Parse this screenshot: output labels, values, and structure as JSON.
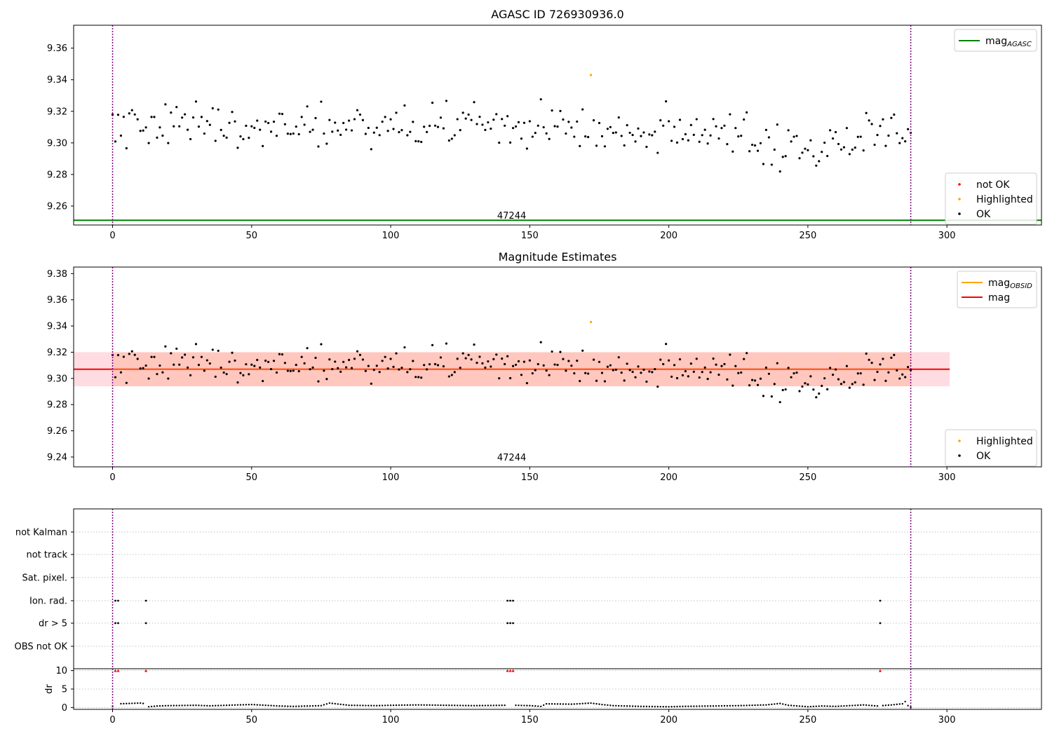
{
  "colors": {
    "ok": "#000000",
    "not_ok": "#ff0000",
    "highlighted": "#ffa500",
    "mag_agasc": "#008000",
    "mag_obsid": "#ffa500",
    "mag": "#ff0000",
    "obs_band": "#ffa07a",
    "mag_band": "#ffc0cb",
    "obs_boundary": "#800080",
    "flag_grid": "#b0b0b0"
  },
  "chart_data": [
    {
      "type": "scatter",
      "title": "AGASC ID 726930936.0",
      "xlim": [
        -14,
        334
      ],
      "ylim": [
        9.248,
        9.3745
      ],
      "xticks": [
        0,
        50,
        100,
        150,
        200,
        250,
        300
      ],
      "yticks": [
        9.26,
        9.28,
        9.3,
        9.32,
        9.34,
        9.36
      ],
      "ytick_labels": [
        "9.26",
        "9.28",
        "9.30",
        "9.32",
        "9.34",
        "9.36"
      ],
      "obs_boundaries": [
        0,
        287
      ],
      "obsid_label": {
        "text": "47244",
        "x": 143.5
      },
      "mag_agasc": 9.251,
      "legend_top": [
        {
          "label": "mag",
          "sub": "AGASC",
          "kind": "line",
          "color_key": "mag_agasc"
        }
      ],
      "legend_bottom": [
        {
          "label": "not OK",
          "kind": "dot",
          "color_key": "not_ok"
        },
        {
          "label": "Highlighted",
          "kind": "dot",
          "color_key": "highlighted"
        },
        {
          "label": "OK",
          "kind": "dot",
          "color_key": "ok"
        }
      ],
      "highlighted": [
        {
          "x": 172,
          "y": 9.343
        }
      ]
    },
    {
      "type": "scatter",
      "title": "Magnitude Estimates",
      "xlim": [
        -14,
        334
      ],
      "ylim": [
        9.2325,
        9.385
      ],
      "xticks": [
        0,
        50,
        100,
        150,
        200,
        250,
        300
      ],
      "yticks": [
        9.24,
        9.26,
        9.28,
        9.3,
        9.32,
        9.34,
        9.36,
        9.38
      ],
      "ytick_labels": [
        "9.24",
        "9.26",
        "9.28",
        "9.30",
        "9.32",
        "9.34",
        "9.36",
        "9.38"
      ],
      "obs_boundaries": [
        0,
        287
      ],
      "obsid_label": {
        "text": "47244",
        "x": 143.5
      },
      "mag": 9.307,
      "mag_band": [
        9.294,
        9.32
      ],
      "mag_band_xrange": [
        -14,
        301
      ],
      "mag_obsid": 9.307,
      "mag_obsid_band": [
        9.294,
        9.32
      ],
      "mag_obsid_xrange": [
        0,
        287
      ],
      "legend_top": [
        {
          "label": "mag",
          "sub": "OBSID",
          "kind": "line",
          "color_key": "mag_obsid"
        },
        {
          "label": "mag",
          "sub": "",
          "kind": "line",
          "color_key": "mag"
        }
      ],
      "legend_bottom": [
        {
          "label": "Highlighted",
          "kind": "dot",
          "color_key": "highlighted"
        },
        {
          "label": "OK",
          "kind": "dot",
          "color_key": "ok"
        }
      ],
      "highlighted": [
        {
          "x": 172,
          "y": 9.343
        }
      ]
    },
    {
      "type": "scatter",
      "title": "",
      "xlim": [
        -14,
        334
      ],
      "xticks": [
        0,
        50,
        100,
        150,
        200,
        250,
        300
      ],
      "obs_boundaries": [
        0,
        287
      ],
      "flag_rows": [
        "not Kalman",
        "not track",
        "Sat. pixel.",
        "Ion. rad.",
        "dr > 5",
        "OBS not OK"
      ],
      "flags": {
        "Ion. rad.": [
          1,
          2,
          12,
          142,
          143,
          144,
          276
        ],
        "dr > 5": [
          1,
          2,
          12,
          142,
          143,
          144,
          276
        ]
      },
      "dr_ylabel": "dr",
      "dr_ylim": [
        -0.5,
        10.5
      ],
      "dr_yticks": [
        0,
        5,
        10
      ],
      "dr_ytick_labels": [
        "0",
        "5",
        "10"
      ],
      "dr_clipped": [
        1,
        2,
        12,
        142,
        143,
        144,
        276
      ],
      "dr_clipped_value": 10,
      "dr_profile": [
        [
          0,
          0.3
        ],
        [
          2,
          1.0
        ],
        [
          10,
          1.2
        ],
        [
          12,
          1.0
        ],
        [
          13,
          0.2
        ],
        [
          16,
          0.4
        ],
        [
          20,
          0.5
        ],
        [
          30,
          0.6
        ],
        [
          35,
          0.45
        ],
        [
          45,
          0.7
        ],
        [
          50,
          0.8
        ],
        [
          55,
          0.6
        ],
        [
          60,
          0.4
        ],
        [
          65,
          0.3
        ],
        [
          75,
          0.5
        ],
        [
          78,
          1.2
        ],
        [
          85,
          0.6
        ],
        [
          95,
          0.5
        ],
        [
          100,
          0.6
        ],
        [
          110,
          0.7
        ],
        [
          120,
          0.6
        ],
        [
          130,
          0.5
        ],
        [
          141,
          0.6
        ],
        [
          145,
          0.6
        ],
        [
          150,
          0.5
        ],
        [
          154,
          0.3
        ],
        [
          156,
          1.0
        ],
        [
          165,
          0.9
        ],
        [
          172,
          1.2
        ],
        [
          176,
          0.8
        ],
        [
          180,
          0.5
        ],
        [
          190,
          0.3
        ],
        [
          200,
          0.2
        ],
        [
          205,
          0.3
        ],
        [
          215,
          0.4
        ],
        [
          225,
          0.5
        ],
        [
          235,
          0.7
        ],
        [
          240,
          1.1
        ],
        [
          243,
          0.6
        ],
        [
          250,
          0.2
        ],
        [
          255,
          0.4
        ],
        [
          260,
          0.3
        ],
        [
          265,
          0.5
        ],
        [
          270,
          0.7
        ],
        [
          275,
          0.4
        ],
        [
          280,
          0.7
        ],
        [
          284,
          1.0
        ],
        [
          285,
          1.6
        ],
        [
          286,
          0.5
        ],
        [
          287,
          0.1
        ]
      ]
    }
  ]
}
